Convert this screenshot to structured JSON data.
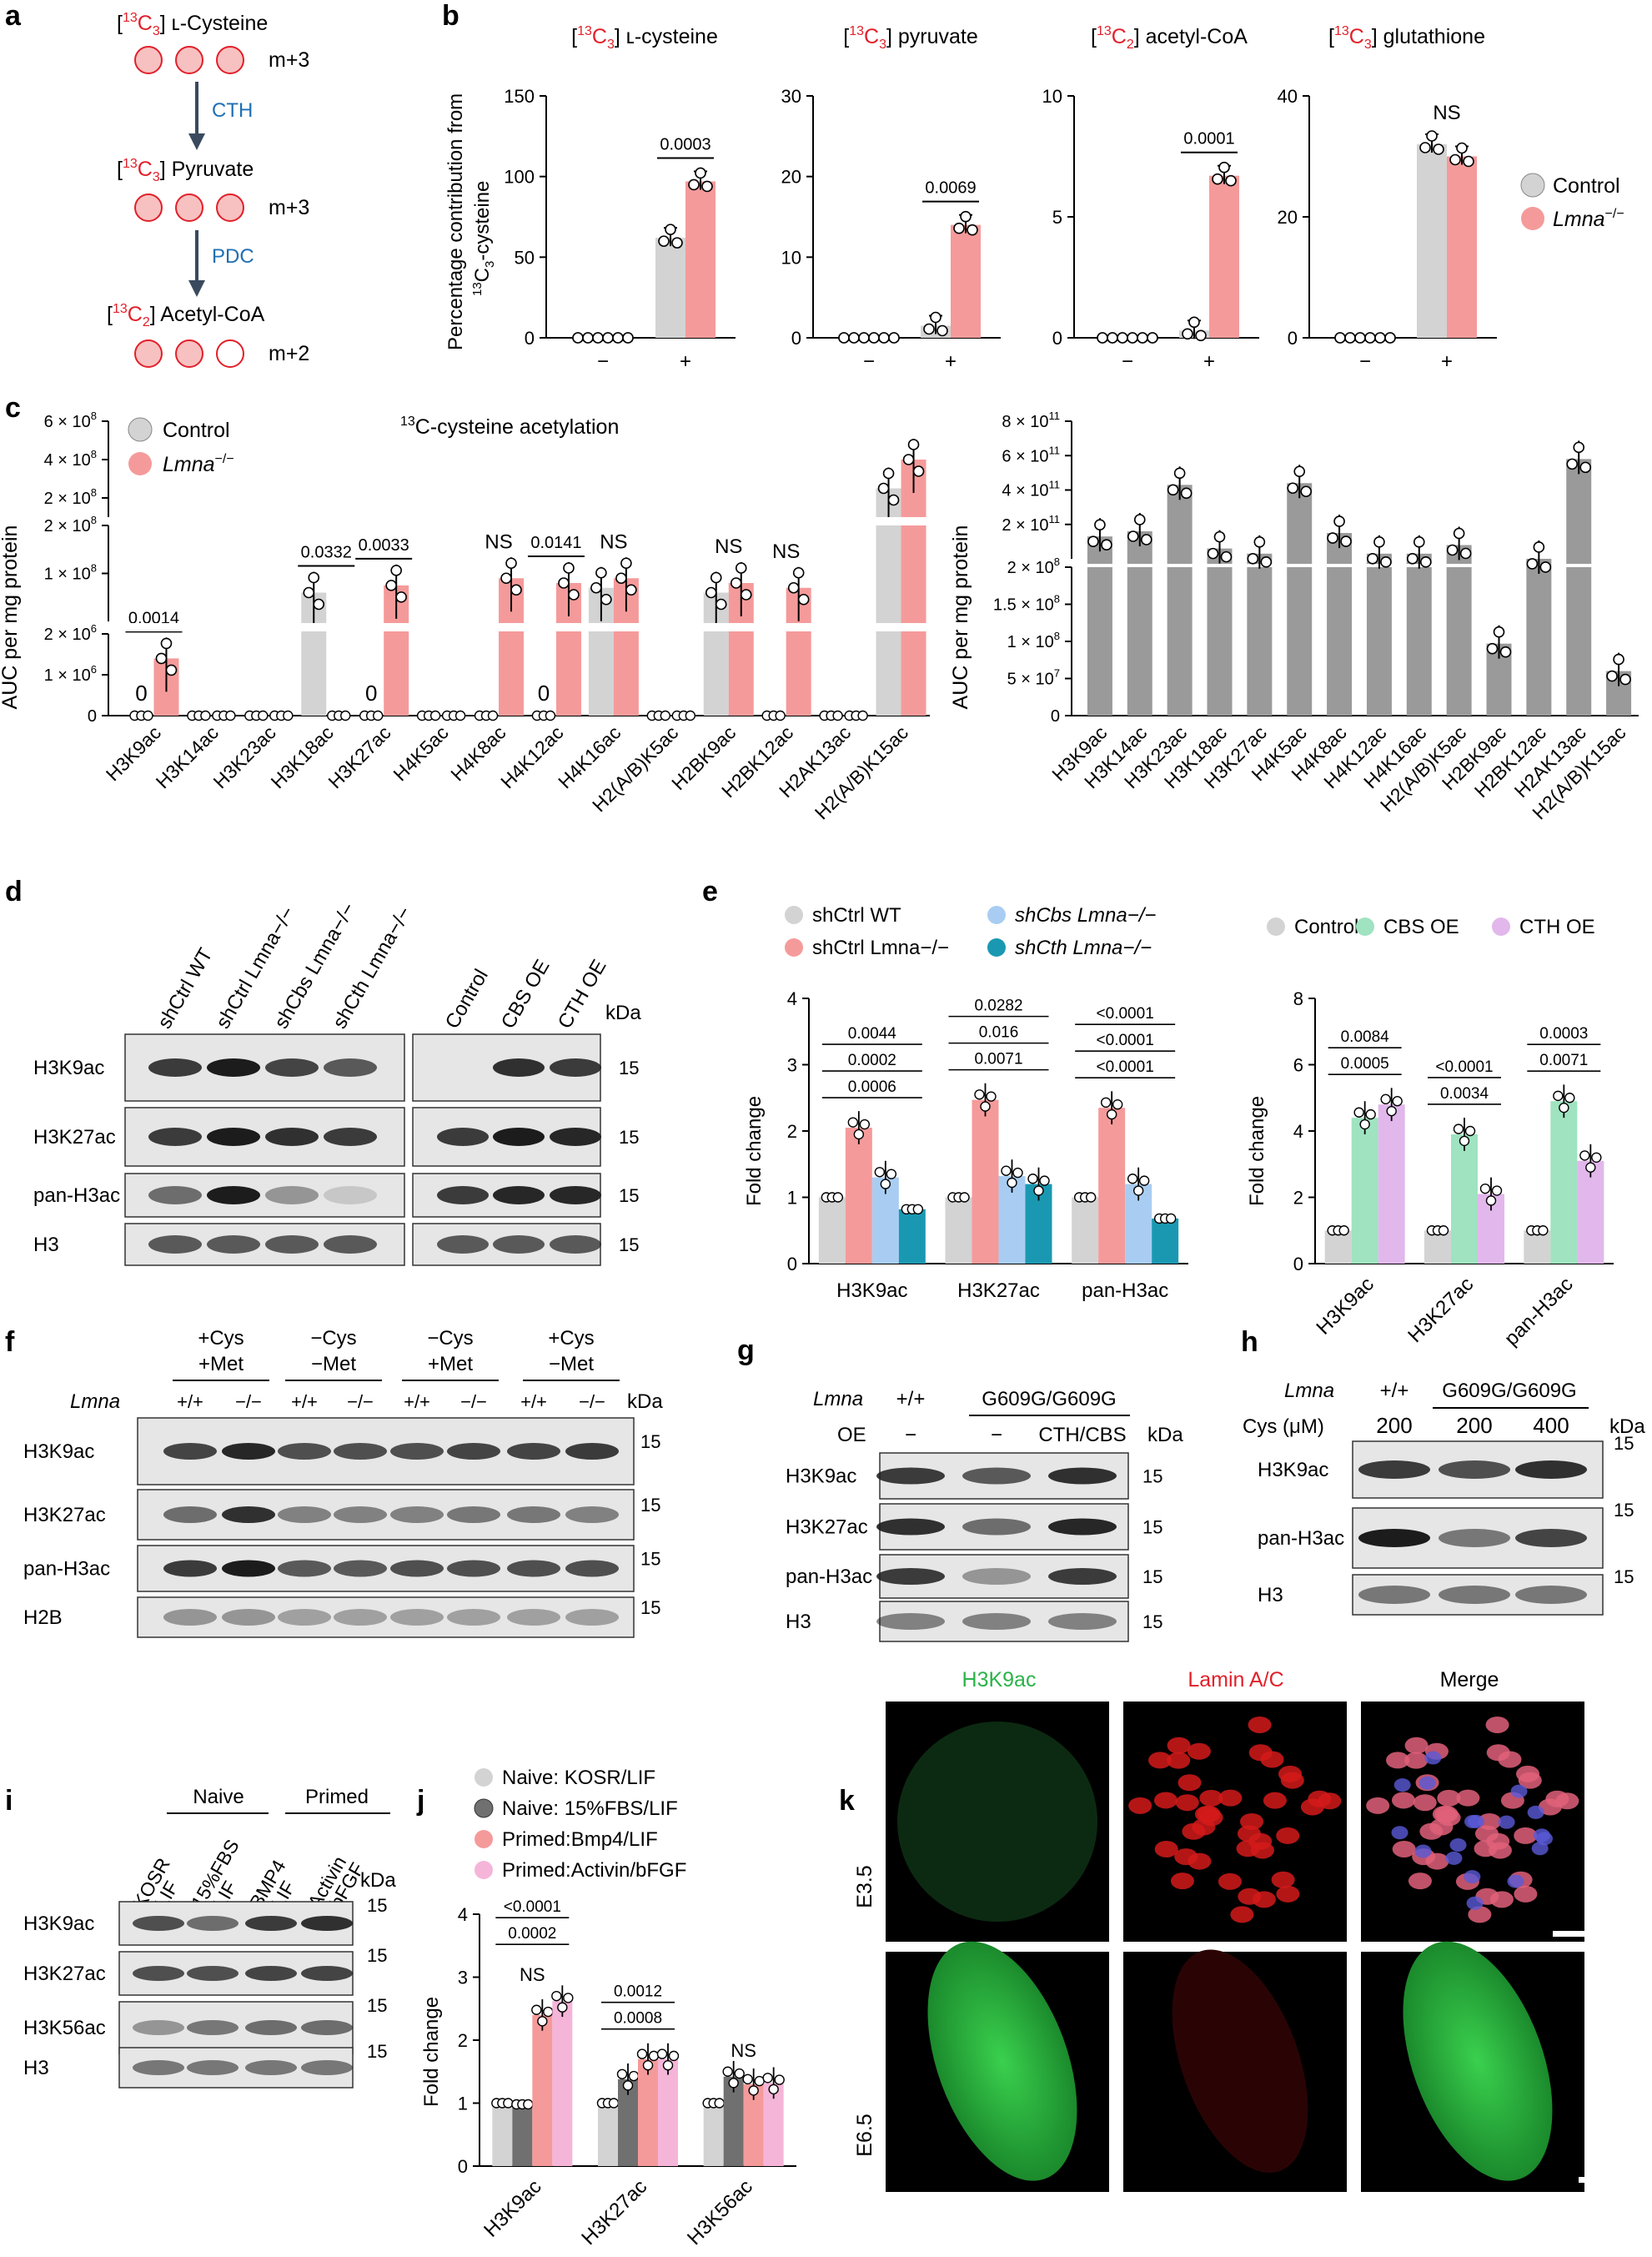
{
  "panel_letters": {
    "a": "a",
    "b": "b",
    "c": "c",
    "d": "d",
    "e": "e",
    "f": "f",
    "g": "g",
    "h": "h",
    "i": "i",
    "j": "j",
    "k": "k"
  },
  "colors": {
    "control": "#d3d3d3",
    "lmna": "#f59a9a",
    "ctrl_dark": "#9a9a9a",
    "shcbs": "#a9cdf2",
    "shcth": "#1a98b2",
    "cbs_oe": "#9fe3c0",
    "cth_oe": "#e2b7ec",
    "fbs": "#707070",
    "bmp4": "#f59a9a",
    "activin": "#f5b5d8",
    "red": "#e2202a",
    "blue": "#1f6fb5",
    "green": "#2bb34a"
  },
  "a": {
    "cys_pre": "[",
    "cys_iso": "13",
    "cys_iso_el": "C",
    "cys_sub": "3",
    "cys_name": "] ʟ-Cysteine",
    "cys_m": "m+3",
    "pyr_pre": "[",
    "pyr_iso": "13",
    "pyr_iso_el": "C",
    "pyr_sub": "3",
    "pyr_name": "] Pyruvate",
    "pyr_m": "m+3",
    "aco_pre": "[",
    "aco_iso": "13",
    "aco_iso_el": "C",
    "aco_sub": "2",
    "aco_name": "] Acetyl-CoA",
    "aco_m": "m+2",
    "enzyme1": "CTH",
    "enzyme2": "PDC"
  },
  "b": {
    "ylabel1": "Percentage contribution from",
    "ylabel2_pre": "13",
    "ylabel2_post": "C",
    "ylabel2_sub": "3",
    "ylabel2_end": "-cysteine",
    "legend": [
      {
        "name": "Control",
        "color": "#d3d3d3"
      },
      {
        "name": "Lmna",
        "sup": "−/−",
        "color": "#f59a9a"
      }
    ],
    "charts": [
      {
        "type": "bar",
        "title_pre": "[",
        "title_iso": "13",
        "title_el": "C",
        "title_sub": "3",
        "title_post": "] ʟ-cysteine",
        "ylim": [
          0,
          150
        ],
        "ticks": [
          "0",
          "50",
          "100",
          "150"
        ],
        "tickvals": [
          0,
          50,
          100,
          150
        ],
        "categories": [
          "−",
          "+"
        ],
        "control": [
          0,
          62
        ],
        "lmna": [
          0,
          97
        ],
        "pvalue": "0.0003",
        "ns": ""
      },
      {
        "type": "bar",
        "title_pre": "[",
        "title_iso": "13",
        "title_el": "C",
        "title_sub": "3",
        "title_post": "] pyruvate",
        "ylim": [
          0,
          30
        ],
        "ticks": [
          "0",
          "10",
          "20",
          "30"
        ],
        "tickvals": [
          0,
          10,
          20,
          30
        ],
        "categories": [
          "−",
          "+"
        ],
        "control": [
          0,
          1.5
        ],
        "lmna": [
          0,
          14
        ],
        "pvalue": "0.0069",
        "ns": ""
      },
      {
        "type": "bar",
        "title_pre": "[",
        "title_iso": "13",
        "title_el": "C",
        "title_sub": "2",
        "title_post": "] acetyl-CoA",
        "ylim": [
          0,
          10
        ],
        "ticks": [
          "0",
          "5",
          "10"
        ],
        "tickvals": [
          0,
          5,
          10
        ],
        "categories": [
          "−",
          "+"
        ],
        "control": [
          0,
          0.3
        ],
        "lmna": [
          0,
          6.7
        ],
        "pvalue": "0.0001",
        "ns": ""
      },
      {
        "type": "bar",
        "title_pre": "[",
        "title_iso": "13",
        "title_el": "C",
        "title_sub": "3",
        "title_post": "] glutathione",
        "ylim": [
          0,
          40
        ],
        "ticks": [
          "0",
          "20",
          "40"
        ],
        "tickvals": [
          0,
          20,
          40
        ],
        "categories": [
          "−",
          "+"
        ],
        "control": [
          0,
          32
        ],
        "lmna": [
          0,
          30
        ],
        "pvalue": "",
        "ns": "NS"
      }
    ]
  },
  "c": {
    "title_iso": "13",
    "title_text": "C-cysteine acetylation",
    "ylabel": "AUC per mg protein",
    "legend": [
      {
        "name": "Control",
        "color": "#d3d3d3"
      },
      {
        "name": "Lmna",
        "sup": "−/−",
        "color": "#f59a9a"
      }
    ],
    "left_ticks_top": [
      {
        "m": "6 × 10",
        "e": "8"
      },
      {
        "m": "4 × 10",
        "e": "8"
      },
      {
        "m": "2 × 10",
        "e": "8"
      }
    ],
    "left_ticks_mid": [
      {
        "m": "2 × 10",
        "e": "8"
      },
      {
        "m": "1 × 10",
        "e": "8"
      }
    ],
    "left_ticks_bot": [
      {
        "m": "2 × 10",
        "e": "6"
      },
      {
        "m": "1 × 10",
        "e": "6"
      },
      {
        "m": "0",
        "e": ""
      }
    ],
    "right_ticks_top": [
      {
        "m": "8 × 10",
        "e": "11"
      },
      {
        "m": "6 × 10",
        "e": "11"
      },
      {
        "m": "4 × 10",
        "e": "11"
      },
      {
        "m": "2 × 10",
        "e": "11"
      }
    ],
    "right_ticks_bot": [
      {
        "m": "2 × 10",
        "e": "8"
      },
      {
        "m": "1.5 × 10",
        "e": "8"
      },
      {
        "m": "1 × 10",
        "e": "8"
      },
      {
        "m": "5 × 10",
        "e": "7"
      },
      {
        "m": "0",
        "e": ""
      }
    ],
    "chart_data": {
      "type": "bar",
      "categories": [
        "H3K9ac",
        "H3K14ac",
        "H3K23ac",
        "H3K18ac",
        "H3K27ac",
        "H4K5ac",
        "H4K8ac",
        "H4K12ac",
        "H4K16ac",
        "H2(A/B)K5ac",
        "H2BK9ac",
        "H2BK12ac",
        "H2AK13ac",
        "H2(A/B)K15ac"
      ],
      "control": [
        0,
        0,
        0,
        60000000,
        0,
        0,
        0,
        0,
        70000000,
        0,
        60000000,
        0,
        0,
        250000000
      ],
      "lmna": [
        1400000,
        0,
        0,
        0,
        75000000,
        0,
        90000000,
        80000000,
        90000000,
        0,
        80000000,
        70000000,
        0,
        400000000
      ],
      "pvalues": [
        "0.0014",
        "",
        "",
        "0.0332",
        "0.0033",
        "",
        "NS",
        "0.0141",
        "NS",
        "",
        "NS",
        "NS",
        "",
        ""
      ],
      "zeros": [
        "0",
        "",
        "",
        "",
        "0",
        "",
        "",
        "0",
        "",
        "",
        "",
        "",
        "",
        ""
      ],
      "right_values": [
        130000000000,
        160000000000,
        430000000000,
        60000000000,
        30000000000,
        440000000000,
        150000000000,
        30000000000,
        30000000000,
        80000000000,
        97000000,
        205000000,
        580000000000,
        60000000
      ]
    }
  },
  "d": {
    "lanes_left": [
      "shCtrl WT",
      "shCtrl Lmna−/−",
      "shCbs Lmna−/−",
      "shCth Lmna−/−"
    ],
    "lanes_right": [
      "Control",
      "CBS OE",
      "CTH OE"
    ],
    "rows": [
      "H3K9ac",
      "H3K27ac",
      "pan-H3ac",
      "H3"
    ],
    "kda": "kDa",
    "size": "15"
  },
  "e": {
    "legend": [
      {
        "name": "shCtrl WT",
        "color": "#d3d3d3"
      },
      {
        "name": "shCtrl Lmna−/−",
        "color": "#f59a9a"
      },
      {
        "name": "shCbs Lmna−/−",
        "color": "#a9cdf2"
      },
      {
        "name": "shCth Lmna−/−",
        "color": "#1a98b2"
      }
    ],
    "legend2": [
      {
        "name": "Control",
        "color": "#d3d3d3"
      },
      {
        "name": "CBS OE",
        "color": "#9fe3c0"
      },
      {
        "name": "CTH OE",
        "color": "#e2b7ec"
      }
    ],
    "ylabel": "Fold change",
    "chart_data": {
      "type": "bar",
      "categories": [
        "H3K9ac",
        "H3K27ac",
        "pan-H3ac"
      ],
      "ylim": [
        0,
        4
      ],
      "series": [
        {
          "name": "shCtrl WT",
          "values": [
            1,
            1,
            1
          ]
        },
        {
          "name": "shCtrl Lmna−/−",
          "values": [
            2.05,
            2.47,
            2.35
          ]
        },
        {
          "name": "shCbs Lmna−/−",
          "values": [
            1.3,
            1.32,
            1.2
          ]
        },
        {
          "name": "shCth Lmna−/−",
          "values": [
            0.82,
            1.2,
            0.68
          ]
        }
      ],
      "pvalues": [
        [
          "0.0006",
          "0.0002",
          "0.0044"
        ],
        [
          "0.0071",
          "0.016",
          "0.0282"
        ],
        [
          "<0.0001",
          "<0.0001",
          "<0.0001"
        ]
      ]
    },
    "chart_data2": {
      "type": "bar",
      "categories": [
        "H3K9ac",
        "H3K27ac",
        "pan-H3ac"
      ],
      "ylim": [
        0,
        8
      ],
      "series": [
        {
          "name": "Control",
          "values": [
            1,
            1,
            1
          ]
        },
        {
          "name": "CBS OE",
          "values": [
            4.4,
            3.9,
            4.9
          ]
        },
        {
          "name": "CTH OE",
          "values": [
            4.8,
            2.1,
            3.1
          ]
        }
      ],
      "pvalues": [
        [
          "0.0005",
          "0.0084"
        ],
        [
          "0.0034",
          "<0.0001"
        ],
        [
          "0.0071",
          "0.0003"
        ]
      ]
    }
  },
  "f": {
    "header": [
      "+Cys",
      "−Cys",
      "−Cys",
      "+Cys"
    ],
    "header2": [
      "+Met",
      "−Met",
      "+Met",
      "−Met"
    ],
    "lmna": "Lmna",
    "geno": [
      "+/+",
      "−/−",
      "+/+",
      "−/−",
      "+/+",
      "−/−",
      "+/+",
      "−/−"
    ],
    "rows": [
      "H3K9ac",
      "H3K27ac",
      "pan-H3ac",
      "H2B"
    ],
    "kda": "kDa",
    "size": "15"
  },
  "g": {
    "lmna": "Lmna",
    "wt": "+/+",
    "mut": "G609G/G609G",
    "oe": "OE",
    "oe_vals": [
      "−",
      "−",
      "CTH/CBS"
    ],
    "rows": [
      "H3K9ac",
      "H3K27ac",
      "pan-H3ac",
      "H3"
    ],
    "kda": "kDa",
    "size": "15"
  },
  "h": {
    "lmna": "Lmna",
    "wt": "+/+",
    "mut": "G609G/G609G",
    "cys": "Cys (μM)",
    "cys_vals": [
      "200",
      "200",
      "400"
    ],
    "rows": [
      "H3K9ac",
      "pan-H3ac",
      "H3"
    ],
    "kda": "kDa",
    "size": "15"
  },
  "i": {
    "naive": "Naive",
    "primed": "Primed",
    "lanes": [
      [
        "KOSR",
        "LIF"
      ],
      [
        "15%FBS",
        "LIF"
      ],
      [
        "BMP4",
        "LIF"
      ],
      [
        "Activin",
        "bFGF"
      ]
    ],
    "rows": [
      "H3K9ac",
      "H3K27ac",
      "H3K56ac",
      "H3"
    ],
    "kda": "kDa",
    "size": "15"
  },
  "j": {
    "legend": [
      {
        "name": "Naive: KOSR/LIF",
        "color": "#d3d3d3"
      },
      {
        "name": "Naive: 15%FBS/LIF",
        "color": "#707070"
      },
      {
        "name": "Primed:Bmp4/LIF",
        "color": "#f59a9a"
      },
      {
        "name": "Primed:Activin/bFGF",
        "color": "#f5b5d8"
      }
    ],
    "ylabel": "Fold change",
    "chart_data": {
      "type": "bar",
      "categories": [
        "H3K9ac",
        "H3K27ac",
        "H3K56ac"
      ],
      "ylim": [
        0,
        4
      ],
      "series": [
        {
          "name": "Naive: KOSR/LIF",
          "values": [
            1,
            1,
            1
          ]
        },
        {
          "name": "Naive: 15%FBS/LIF",
          "values": [
            0.98,
            1.38,
            1.42
          ]
        },
        {
          "name": "Primed:Bmp4/LIF",
          "values": [
            2.4,
            1.7,
            1.3
          ]
        },
        {
          "name": "Primed:Activin/bFGF",
          "values": [
            2.62,
            1.7,
            1.32
          ]
        }
      ],
      "pvalues": [
        [
          "NS",
          "0.0002",
          "<0.0001"
        ],
        [
          "0.0008",
          "0.0012"
        ],
        [
          "NS"
        ]
      ]
    }
  },
  "k": {
    "cols": [
      "H3K9ac",
      "Lamin A/C",
      "Merge"
    ],
    "rows": [
      "E3.5",
      "E6.5"
    ]
  }
}
